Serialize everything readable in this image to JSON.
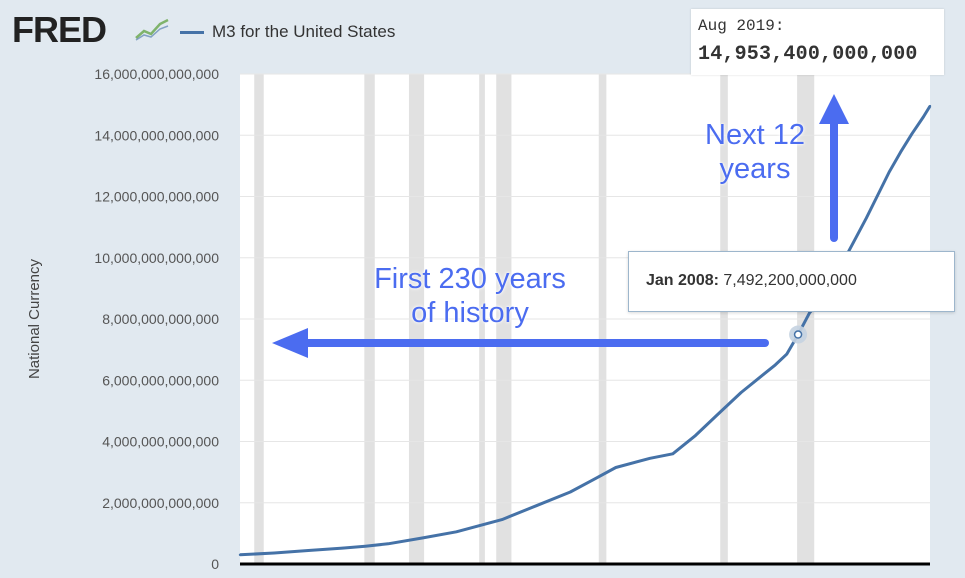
{
  "header": {
    "logo_text": "FRED",
    "logo_icon": "line-graph-icon",
    "series_label": "M3 for the United States"
  },
  "top_readout": {
    "date": "Aug 2019:",
    "value": "14,953,400,000,000"
  },
  "tooltip": {
    "date": "Jan 2008:",
    "value": "7,492,200,000,000"
  },
  "annotations": {
    "left": [
      "First 230 years",
      "of history"
    ],
    "right": [
      "Next 12",
      "years"
    ]
  },
  "colors": {
    "background": "#e1e9f0",
    "plot_background": "#ffffff",
    "series": "#4572a7",
    "recession_shade": "#e1e1e1",
    "annotation": "#4b6cf0"
  },
  "chart_data": {
    "type": "line",
    "title": "",
    "xlabel": "",
    "ylabel": "National Currency",
    "ylim": [
      0,
      16000000000000
    ],
    "yticks": [
      0,
      2000000000000,
      4000000000000,
      6000000000000,
      8000000000000,
      10000000000000,
      12000000000000,
      14000000000000,
      16000000000000
    ],
    "ytick_labels": [
      "0",
      "2,000,000,000,000",
      "4,000,000,000,000",
      "6,000,000,000,000",
      "8,000,000,000,000",
      "10,000,000,000,000",
      "12,000,000,000,000",
      "14,000,000,000,000",
      "16,000,000,000,000"
    ],
    "xlim": [
      "1959-01",
      "2019-08"
    ],
    "recessions": [
      [
        "1960-04",
        "1961-02"
      ],
      [
        "1969-12",
        "1970-11"
      ],
      [
        "1973-11",
        "1975-03"
      ],
      [
        "1980-01",
        "1980-07"
      ],
      [
        "1981-07",
        "1982-11"
      ],
      [
        "1990-07",
        "1991-03"
      ],
      [
        "2001-03",
        "2001-11"
      ],
      [
        "2007-12",
        "2009-06"
      ]
    ],
    "highlight_point": {
      "x": "2008-01",
      "y": 7492200000000
    },
    "series": [
      {
        "name": "M3 for the United States",
        "x": [
          "1959-01",
          "1962-01",
          "1965-01",
          "1968-01",
          "1970-01",
          "1972-01",
          "1975-01",
          "1978-01",
          "1980-01",
          "1982-01",
          "1985-01",
          "1988-01",
          "1990-01",
          "1992-01",
          "1995-01",
          "1997-01",
          "1999-01",
          "2001-01",
          "2003-01",
          "2005-01",
          "2006-01",
          "2007-01",
          "2008-01",
          "2009-01",
          "2010-01",
          "2011-01",
          "2012-01",
          "2013-01",
          "2014-01",
          "2015-01",
          "2016-01",
          "2017-01",
          "2018-01",
          "2019-01",
          "2019-08"
        ],
        "values": [
          300000000000,
          360000000000,
          440000000000,
          520000000000,
          580000000000,
          660000000000,
          850000000000,
          1050000000000,
          1250000000000,
          1450000000000,
          1900000000000,
          2350000000000,
          2750000000000,
          3150000000000,
          3450000000000,
          3600000000000,
          4200000000000,
          4900000000000,
          5600000000000,
          6200000000000,
          6500000000000,
          6850000000000,
          7492200000000,
          8200000000000,
          8600000000000,
          9200000000000,
          9900000000000,
          10600000000000,
          11300000000000,
          12050000000000,
          12800000000000,
          13450000000000,
          14050000000000,
          14600000000000,
          14953400000000
        ]
      }
    ]
  }
}
